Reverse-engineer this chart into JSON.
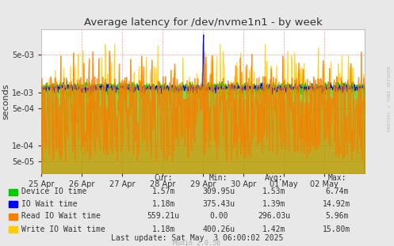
{
  "title": "Average latency for /dev/nvme1n1 - by week",
  "ylabel": "seconds",
  "background_color": "#e8e8e8",
  "plot_bg_color": "#ffffff",
  "grid_color": "#ff9999",
  "title_color": "#333333",
  "watermark": "RRDTOOL / TOBI OETIKER",
  "munin_version": "Munin 2.0.56",
  "xticklabels": [
    "25 Apr",
    "26 Apr",
    "27 Apr",
    "28 Apr",
    "29 Apr",
    "30 Apr",
    "01 May",
    "02 May"
  ],
  "ylim_log_min": 3e-05,
  "ylim_log_max": 0.015,
  "yticks": [
    5e-05,
    0.0001,
    0.0005,
    0.001,
    0.005
  ],
  "ytick_labels": [
    "5e-05",
    "1e-04",
    "5e-04",
    "1e-03",
    "5e-03"
  ],
  "series": {
    "device_io": {
      "label": "Device IO time",
      "color": "#00cc00"
    },
    "io_wait": {
      "label": "IO Wait time",
      "color": "#0000ff"
    },
    "read_io": {
      "label": "Read IO Wait time",
      "color": "#f77f00"
    },
    "write_io": {
      "label": "Write IO Wait time",
      "color": "#ffcc00"
    }
  },
  "col_labels": [
    "Cur:",
    "Min:",
    "Avg:",
    "Max:"
  ],
  "series_vals": [
    [
      "1.57m",
      "309.95u",
      "1.53m",
      "6.74m"
    ],
    [
      "1.18m",
      "375.43u",
      "1.39m",
      "14.92m"
    ],
    [
      "559.21u",
      "0.00",
      "296.03u",
      "5.96m"
    ],
    [
      "1.18m",
      "400.26u",
      "1.42m",
      "15.80m"
    ]
  ],
  "last_update": "Last update: Sat May  3 06:00:02 2025",
  "num_points": 700
}
